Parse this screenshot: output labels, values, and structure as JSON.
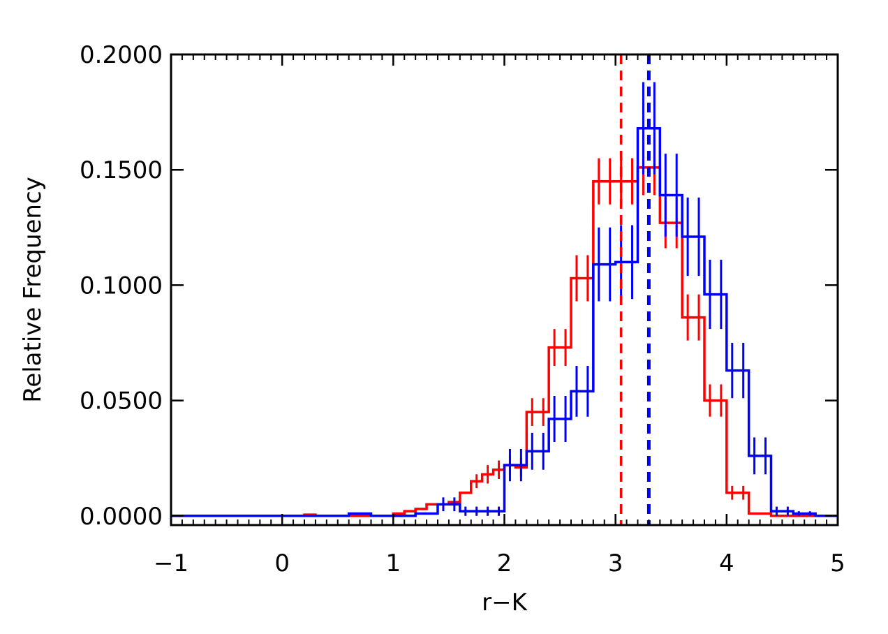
{
  "chart_data": {
    "type": "histogram-step",
    "xlabel": "r−K",
    "ylabel": "Relative Frequency",
    "xlim": [
      -1,
      5
    ],
    "ylim": [
      -0.004,
      0.2
    ],
    "x_ticks": [
      -1,
      0,
      1,
      2,
      3,
      4,
      5
    ],
    "x_tick_labels": [
      "−1",
      "0",
      "1",
      "2",
      "3",
      "4",
      "5"
    ],
    "y_ticks": [
      0.0,
      0.05,
      0.1,
      0.15,
      0.2
    ],
    "y_tick_labels": [
      "0.0000",
      "0.0500",
      "0.1000",
      "0.1500",
      "0.2000"
    ],
    "x_minor_step": 0.1,
    "bin_width": 0.1,
    "grid": false,
    "series": [
      {
        "color": "#ff0000",
        "bin_centers": [
          -0.95,
          -0.85,
          -0.75,
          -0.65,
          -0.55,
          -0.45,
          -0.35,
          -0.25,
          -0.15,
          -0.05,
          0.05,
          0.15,
          0.25,
          0.35,
          0.45,
          0.55,
          0.65,
          0.75,
          0.85,
          0.95,
          1.05,
          1.15,
          1.25,
          1.35,
          1.45,
          1.55,
          1.65,
          1.75,
          1.85,
          1.95,
          2.05,
          2.15,
          2.25,
          2.35,
          2.45,
          2.55,
          2.65,
          2.75,
          2.85,
          2.95,
          3.05,
          3.15,
          3.25,
          3.35,
          3.45,
          3.55,
          3.65,
          3.75,
          3.85,
          3.95,
          4.05,
          4.15,
          4.25,
          4.35,
          4.45,
          4.55,
          4.65,
          4.75,
          4.85,
          4.95
        ],
        "values": [
          0,
          0,
          0,
          0,
          0,
          0,
          0,
          0,
          0,
          0,
          0,
          0,
          0.0005,
          0,
          0,
          0,
          0,
          0,
          0,
          0,
          0.001,
          0.002,
          0.003,
          0.005,
          0.005,
          0.006,
          0.01,
          0.015,
          0.018,
          0.02,
          0.022,
          0.021,
          0.045,
          0.045,
          0.073,
          0.073,
          0.103,
          0.103,
          0.145,
          0.145,
          0.145,
          0.145,
          0.151,
          0.151,
          0.127,
          0.127,
          0.086,
          0.086,
          0.05,
          0.05,
          0.01,
          0.01,
          0.001,
          0.001,
          0,
          0,
          0,
          0,
          0,
          0
        ],
        "errors": [
          0,
          0,
          0,
          0,
          0,
          0,
          0,
          0,
          0,
          0,
          0,
          0,
          0,
          0,
          0,
          0,
          0,
          0,
          0,
          0,
          0,
          0,
          0,
          0,
          0,
          0,
          0,
          0.003,
          0.004,
          0.004,
          0.004,
          0.004,
          0.006,
          0.006,
          0.008,
          0.008,
          0.01,
          0.01,
          0.01,
          0.01,
          0.01,
          0.01,
          0.012,
          0.012,
          0.011,
          0.011,
          0.01,
          0.01,
          0.007,
          0.007,
          0.003,
          0.003,
          0,
          0,
          0,
          0,
          0,
          0,
          0,
          0
        ]
      },
      {
        "color": "#0000ff",
        "bin_centers": [
          -0.95,
          -0.85,
          -0.75,
          -0.65,
          -0.55,
          -0.45,
          -0.35,
          -0.25,
          -0.15,
          -0.05,
          0.05,
          0.15,
          0.25,
          0.35,
          0.45,
          0.55,
          0.65,
          0.75,
          0.85,
          0.95,
          1.05,
          1.15,
          1.25,
          1.35,
          1.45,
          1.55,
          1.65,
          1.75,
          1.85,
          1.95,
          2.05,
          2.15,
          2.25,
          2.35,
          2.45,
          2.55,
          2.65,
          2.75,
          2.85,
          2.95,
          3.05,
          3.15,
          3.25,
          3.35,
          3.45,
          3.55,
          3.65,
          3.75,
          3.85,
          3.95,
          4.05,
          4.15,
          4.25,
          4.35,
          4.45,
          4.55,
          4.65,
          4.75,
          4.85,
          4.95
        ],
        "values": [
          0,
          0,
          0,
          0,
          0,
          0,
          0,
          0,
          0,
          0,
          0,
          0,
          0,
          0,
          0,
          0,
          0.001,
          0.001,
          0,
          0,
          0,
          0,
          0.001,
          0.001,
          0.005,
          0.005,
          0.002,
          0.002,
          0.002,
          0.002,
          0.022,
          0.022,
          0.028,
          0.028,
          0.042,
          0.042,
          0.054,
          0.054,
          0.109,
          0.109,
          0.11,
          0.11,
          0.168,
          0.168,
          0.139,
          0.139,
          0.121,
          0.121,
          0.096,
          0.096,
          0.063,
          0.063,
          0.026,
          0.026,
          0.002,
          0.002,
          0.001,
          0.001,
          0,
          0
        ],
        "errors": [
          0,
          0,
          0,
          0,
          0,
          0,
          0,
          0,
          0,
          0,
          0,
          0,
          0,
          0,
          0,
          0,
          0,
          0,
          0,
          0,
          0,
          0,
          0,
          0,
          0.003,
          0.003,
          0.002,
          0.002,
          0.002,
          0.002,
          0.007,
          0.007,
          0.008,
          0.008,
          0.01,
          0.01,
          0.011,
          0.011,
          0.016,
          0.016,
          0.016,
          0.016,
          0.02,
          0.02,
          0.018,
          0.018,
          0.017,
          0.017,
          0.015,
          0.015,
          0.012,
          0.012,
          0.008,
          0.008,
          0.002,
          0.002,
          0.001,
          0.001,
          0,
          0
        ]
      }
    ],
    "vlines": [
      {
        "x": 3.05,
        "color": "#ff0000",
        "style": "dashed"
      },
      {
        "x": 3.3,
        "color": "#0000ff",
        "style": "dashed"
      }
    ]
  }
}
